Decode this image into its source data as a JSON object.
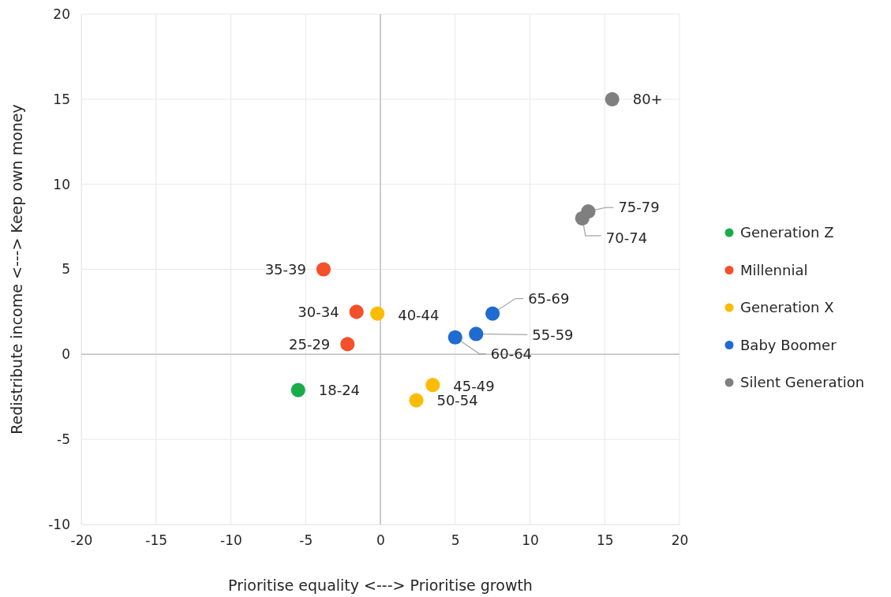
{
  "chart_data": {
    "type": "scatter",
    "xlabel": "Prioritise equality <---> Prioritise growth",
    "ylabel": "Redistribute income <---> Keep own money",
    "xlim": [
      -20,
      20
    ],
    "ylim": [
      -10,
      20
    ],
    "xticks": [
      -20,
      -15,
      -10,
      -5,
      0,
      5,
      10,
      15,
      20
    ],
    "yticks": [
      -10,
      -5,
      0,
      5,
      10,
      15,
      20
    ],
    "grid": true,
    "legend": "right",
    "marker": "circle",
    "series": [
      {
        "name": "Generation Z",
        "color": "#1aab4b",
        "x": [
          -5.5
        ],
        "values": [
          -2.1
        ]
      },
      {
        "name": "Millennial",
        "color": "#f4502a",
        "x": [
          -2.2,
          -1.6,
          -3.8
        ],
        "values": [
          0.6,
          2.5,
          5.0
        ]
      },
      {
        "name": "Generation X",
        "color": "#fbbc04",
        "x": [
          -0.2,
          3.5,
          2.4
        ],
        "values": [
          2.4,
          -1.8,
          -2.7
        ]
      },
      {
        "name": "Baby Boomer",
        "color": "#1f6bd0",
        "x": [
          6.4,
          5.0,
          7.5
        ],
        "values": [
          1.2,
          1.0,
          2.4
        ]
      },
      {
        "name": "Silent Generation",
        "color": "#7f7f7f",
        "x": [
          13.5,
          13.9,
          15.5
        ],
        "values": [
          8.0,
          8.4,
          15.0
        ]
      }
    ],
    "annotations": [
      {
        "text": "18-24",
        "x": -5.5,
        "y": -2.1
      },
      {
        "text": "25-29",
        "x": -2.2,
        "y": 0.6
      },
      {
        "text": "30-34",
        "x": -1.6,
        "y": 2.5
      },
      {
        "text": "35-39",
        "x": -3.8,
        "y": 5.0
      },
      {
        "text": "40-44",
        "x": -0.2,
        "y": 2.4
      },
      {
        "text": "45-49",
        "x": 3.5,
        "y": -1.8
      },
      {
        "text": "50-54",
        "x": 2.4,
        "y": -2.7
      },
      {
        "text": "55-59",
        "x": 6.4,
        "y": 1.2
      },
      {
        "text": "60-64",
        "x": 5.0,
        "y": 1.0
      },
      {
        "text": "65-69",
        "x": 7.5,
        "y": 2.4
      },
      {
        "text": "70-74",
        "x": 13.5,
        "y": 8.0
      },
      {
        "text": "75-79",
        "x": 13.9,
        "y": 8.4
      },
      {
        "text": "80+",
        "x": 15.5,
        "y": 15.0
      }
    ]
  }
}
